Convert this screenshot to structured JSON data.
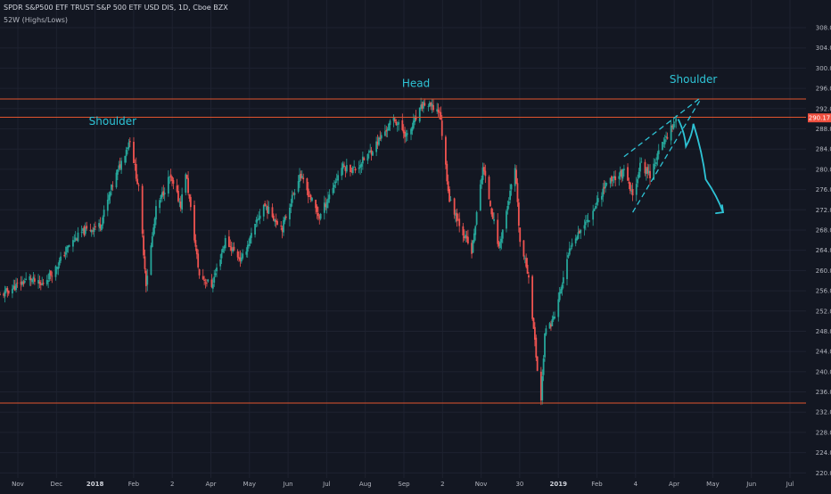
{
  "header": {
    "title": "SPDR S&P500 ETF TRUST S&P 500 ETF USD DIS, 1D, Cboe BZX",
    "indicator": "52W (Highs/Lows)"
  },
  "colors": {
    "background": "#131722",
    "grid": "#1e2230",
    "up": "#26a69a",
    "down": "#ef5350",
    "level_line": "#e0542e",
    "annotation": "#2ec4d6",
    "price_tag": "#f05040",
    "axis_text": "#b2b5be"
  },
  "icons": [
    "price-tag-marker"
  ],
  "chart_data": {
    "type": "candlestick",
    "title": "SPDR S&P500 ETF TRUST S&P 500 ETF USD DIS, 1D, Cboe BZX",
    "x_axis": {
      "labels": [
        "Nov",
        "Dec",
        "2018",
        "Feb",
        "2",
        "Apr",
        "May",
        "Jun",
        "Jul",
        "Aug",
        "Sep",
        "2",
        "Nov",
        "30",
        "2019",
        "Feb",
        "4",
        "Apr",
        "May",
        "Jun",
        "Jul"
      ],
      "range": [
        "2017-10-13",
        "2019-07-26"
      ]
    },
    "y_axis": {
      "position": "right",
      "range": [
        219,
        311
      ],
      "tick_labels": [
        "308.00",
        "304.00",
        "300.00",
        "296.00",
        "292.00",
        "288.00",
        "284.00",
        "280.00",
        "276.00",
        "272.00",
        "268.00",
        "264.00",
        "260.00",
        "256.00",
        "252.00",
        "248.00",
        "244.00",
        "240.00",
        "236.00",
        "232.00",
        "228.00",
        "224.00",
        "220.00"
      ],
      "current_price_label": "290.17",
      "current_price": 290.17
    },
    "grid": true,
    "legend": "none",
    "horizontal_levels": [
      293.9,
      290.3,
      233.8
    ],
    "series": [
      {
        "name": "",
        "trend": [
          [
            "2017-10-13",
            255.0
          ],
          [
            "2017-10-23",
            256.5
          ],
          [
            "2017-11-06",
            258.5
          ],
          [
            "2017-11-15",
            257.0
          ],
          [
            "2017-11-27",
            260.5
          ],
          [
            "2017-12-08",
            265.0
          ],
          [
            "2017-12-18",
            267.5
          ],
          [
            "2018-01-02",
            269.0
          ],
          [
            "2018-01-12",
            277.0
          ],
          [
            "2018-01-26",
            286.0
          ],
          [
            "2018-02-02",
            276.0
          ],
          [
            "2018-02-08",
            257.5
          ],
          [
            "2018-02-16",
            272.0
          ],
          [
            "2018-02-27",
            278.5
          ],
          [
            "2018-03-08",
            273.0
          ],
          [
            "2018-03-12",
            279.5
          ],
          [
            "2018-03-23",
            259.0
          ],
          [
            "2018-04-02",
            257.0
          ],
          [
            "2018-04-13",
            266.0
          ],
          [
            "2018-04-26",
            262.0
          ],
          [
            "2018-05-14",
            273.0
          ],
          [
            "2018-05-29",
            268.5
          ],
          [
            "2018-06-12",
            279.0
          ],
          [
            "2018-06-28",
            270.5
          ],
          [
            "2018-07-16",
            280.5
          ],
          [
            "2018-07-27",
            280.0
          ],
          [
            "2018-08-10",
            284.0
          ],
          [
            "2018-08-27",
            290.0
          ],
          [
            "2018-09-07",
            286.5
          ],
          [
            "2018-09-20",
            293.0
          ],
          [
            "2018-10-03",
            291.5
          ],
          [
            "2018-10-11",
            274.0
          ],
          [
            "2018-10-29",
            263.5
          ],
          [
            "2018-11-07",
            280.5
          ],
          [
            "2018-11-20",
            264.5
          ],
          [
            "2018-12-03",
            280.0
          ],
          [
            "2018-12-07",
            265.5
          ],
          [
            "2018-12-14",
            259.0
          ],
          [
            "2018-12-21",
            240.5
          ],
          [
            "2018-12-24",
            234.5
          ],
          [
            "2018-12-27",
            247.5
          ],
          [
            "2019-01-04",
            251.0
          ],
          [
            "2019-01-18",
            266.0
          ],
          [
            "2019-02-01",
            270.5
          ],
          [
            "2019-02-15",
            277.5
          ],
          [
            "2019-03-01",
            279.5
          ],
          [
            "2019-03-08",
            274.5
          ],
          [
            "2019-03-14",
            281.0
          ],
          [
            "2019-03-22",
            279.0
          ],
          [
            "2019-04-01",
            285.0
          ],
          [
            "2019-04-12",
            290.1
          ]
        ]
      }
    ],
    "annotations": [
      {
        "text": "Shoulder",
        "date": "2018-01-12",
        "price": 288.8
      },
      {
        "text": "Head",
        "date": "2018-09-14",
        "price": 296.3
      },
      {
        "text": "Shoulder",
        "date": "2019-04-26",
        "price": 297.1
      }
    ],
    "drawings": {
      "wedge_upper": [
        [
          "2019-03-01",
          282.5
        ],
        [
          "2019-05-01",
          294.0
        ]
      ],
      "wedge_lower": [
        [
          "2019-03-08",
          271.5
        ],
        [
          "2019-05-01",
          293.5
        ]
      ],
      "projection": [
        [
          "2019-04-14",
          289.8
        ],
        [
          "2019-04-20",
          284.5
        ],
        [
          "2019-04-26",
          289.0
        ],
        [
          "2019-05-06",
          278.0
        ],
        [
          "2019-05-20",
          271.5
        ]
      ]
    }
  }
}
